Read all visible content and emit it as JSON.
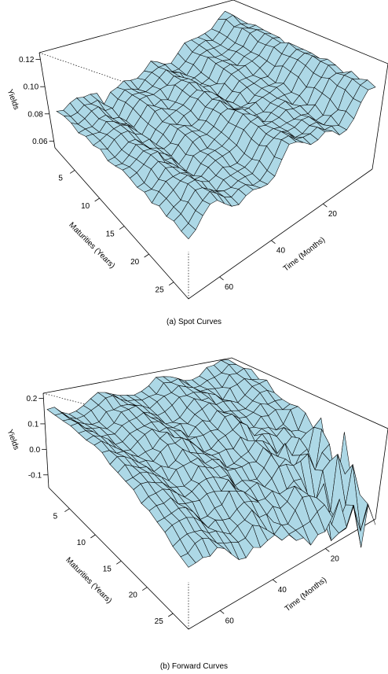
{
  "chart_data": [
    {
      "type": "surface",
      "caption": "(a) Spot Curves",
      "zlabel": "Yields",
      "ylabel": "Maturities (Years)",
      "xlabel": "Time (Months)",
      "z_ticks": [
        "0.06",
        "0.08",
        "0.10",
        "0.12"
      ],
      "z_tick_values": [
        0.06,
        0.08,
        0.1,
        0.12
      ],
      "zlim": [
        0.055,
        0.125
      ],
      "maturity_ticks": [
        "5",
        "10",
        "15",
        "20",
        "25"
      ],
      "maturity_tick_values": [
        5,
        10,
        15,
        20,
        25
      ],
      "maturity_range": [
        1,
        28
      ],
      "time_ticks": [
        "20",
        "40",
        "60"
      ],
      "time_tick_values": [
        20,
        40,
        60
      ],
      "time_range": [
        1,
        72
      ],
      "surface_color": "#add8e6",
      "edge_color": "#000000",
      "surface_description": "Yields rise with maturity; short-maturity yields around 0.06-0.07 near recent time, higher levels (~0.11-0.12) at early time at long maturities, with ridges over time."
    },
    {
      "type": "surface",
      "caption": "(b) Forward Curves",
      "zlabel": "Yields",
      "ylabel": "Maturities (Years)",
      "xlabel": "Time (Months)",
      "z_ticks": [
        "-0.1",
        "0.0",
        "0.1",
        "0.2"
      ],
      "z_tick_values": [
        -0.1,
        0.0,
        0.1,
        0.2
      ],
      "zlim": [
        -0.15,
        0.22
      ],
      "maturity_ticks": [
        "5",
        "10",
        "15",
        "20",
        "25"
      ],
      "maturity_tick_values": [
        5,
        10,
        15,
        20,
        25
      ],
      "maturity_range": [
        1,
        28
      ],
      "time_ticks": [
        "20",
        "40",
        "60"
      ],
      "time_tick_values": [
        20,
        40,
        60
      ],
      "time_range": [
        1,
        72
      ],
      "surface_color": "#add8e6",
      "edge_color": "#000000",
      "surface_description": "Forward yields around 0.05-0.15, noisy with sharp spikes at early time and long maturities."
    }
  ]
}
